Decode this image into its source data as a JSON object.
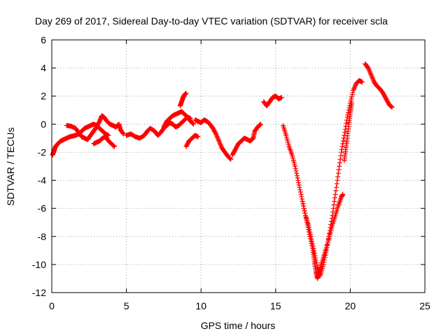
{
  "chart_data": {
    "type": "scatter",
    "title": "Day 269 of 2017, Sidereal Day-to-day VTEC variation (SDTVAR) for receiver scla",
    "xlabel": "GPS time / hours",
    "ylabel": "SDTVAR / TECUs",
    "xlim": [
      0,
      25
    ],
    "ylim": [
      -12,
      6
    ],
    "xticks": [
      0,
      5,
      10,
      15,
      20,
      25
    ],
    "yticks": [
      -12,
      -10,
      -8,
      -6,
      -4,
      -2,
      0,
      2,
      4,
      6
    ],
    "xtick_labels": [
      "0",
      "5",
      "10",
      "15",
      "20",
      "25"
    ],
    "ytick_labels": [
      "-12",
      "-10",
      "-8",
      "-6",
      "-4",
      "-2",
      "0",
      "2",
      "4",
      "6"
    ],
    "grid": true,
    "marker": "plus",
    "color": "#ff0000",
    "series": [
      {
        "points": [
          [
            0.05,
            -2.2
          ],
          [
            0.15,
            -1.9
          ],
          [
            0.25,
            -1.6
          ],
          [
            0.4,
            -1.4
          ],
          [
            0.6,
            -1.2
          ],
          [
            0.8,
            -1.1
          ],
          [
            1.0,
            -1.0
          ],
          [
            1.2,
            -0.9
          ],
          [
            1.4,
            -0.85
          ],
          [
            1.6,
            -0.8
          ],
          [
            1.8,
            -0.7
          ],
          [
            2.0,
            -0.5
          ],
          [
            2.2,
            -0.3
          ],
          [
            2.4,
            -0.2
          ],
          [
            2.6,
            -0.1
          ],
          [
            2.8,
            0.0
          ],
          [
            3.0,
            -0.1
          ],
          [
            3.2,
            -0.3
          ],
          [
            3.4,
            -0.5
          ],
          [
            3.6,
            -0.7
          ],
          [
            3.8,
            -0.8
          ]
        ]
      },
      {
        "points": [
          [
            1.0,
            -0.1
          ],
          [
            1.3,
            -0.15
          ],
          [
            1.6,
            -0.3
          ],
          [
            1.8,
            -0.6
          ],
          [
            2.0,
            -0.9
          ],
          [
            2.2,
            -1.0
          ],
          [
            2.4,
            -1.1
          ],
          [
            2.6,
            -0.8
          ],
          [
            2.8,
            -0.5
          ],
          [
            3.0,
            -0.2
          ],
          [
            3.2,
            0.2
          ],
          [
            3.35,
            0.6
          ],
          [
            3.5,
            0.5
          ],
          [
            3.7,
            0.2
          ],
          [
            3.9,
            0.0
          ],
          [
            4.1,
            -0.1
          ],
          [
            4.3,
            -0.2
          ],
          [
            4.5,
            0.0
          ],
          [
            4.6,
            -0.4
          ],
          [
            4.8,
            -0.7
          ]
        ]
      },
      {
        "points": [
          [
            2.8,
            -1.4
          ],
          [
            3.0,
            -1.3
          ],
          [
            3.2,
            -1.2
          ],
          [
            3.4,
            -1.0
          ],
          [
            3.6,
            -0.9
          ],
          [
            3.8,
            -1.2
          ],
          [
            4.0,
            -1.4
          ],
          [
            4.2,
            -1.6
          ]
        ]
      },
      {
        "points": [
          [
            5.0,
            -0.8
          ],
          [
            5.3,
            -0.7
          ],
          [
            5.6,
            -0.9
          ],
          [
            5.9,
            -1.0
          ],
          [
            6.2,
            -0.8
          ],
          [
            6.4,
            -0.5
          ],
          [
            6.6,
            -0.3
          ],
          [
            6.9,
            -0.5
          ],
          [
            7.1,
            -0.8
          ],
          [
            7.3,
            -0.6
          ],
          [
            7.5,
            -0.3
          ],
          [
            7.7,
            -0.1
          ],
          [
            7.9,
            0.1
          ],
          [
            8.1,
            0.0
          ],
          [
            8.3,
            -0.2
          ],
          [
            8.5,
            -0.1
          ],
          [
            8.7,
            0.1
          ],
          [
            8.9,
            0.3
          ],
          [
            9.1,
            0.5
          ],
          [
            9.3,
            0.2
          ],
          [
            9.5,
            0.0
          ]
        ]
      },
      {
        "points": [
          [
            7.5,
            -0.2
          ],
          [
            7.7,
            0.2
          ],
          [
            7.9,
            0.4
          ],
          [
            8.1,
            0.6
          ],
          [
            8.3,
            0.7
          ],
          [
            8.5,
            0.8
          ],
          [
            8.7,
            0.9
          ],
          [
            8.9,
            0.7
          ],
          [
            9.1,
            0.5
          ],
          [
            9.3,
            0.4
          ]
        ]
      },
      {
        "points": [
          [
            8.6,
            1.3
          ],
          [
            8.7,
            1.6
          ],
          [
            8.8,
            1.9
          ],
          [
            8.9,
            2.1
          ],
          [
            9.0,
            2.2
          ]
        ]
      },
      {
        "points": [
          [
            9.0,
            -1.6
          ],
          [
            9.2,
            -1.2
          ],
          [
            9.4,
            -1.0
          ],
          [
            9.6,
            -0.8
          ],
          [
            9.8,
            -0.9
          ]
        ]
      },
      {
        "points": [
          [
            9.6,
            0.3
          ],
          [
            9.8,
            0.2
          ],
          [
            10.0,
            0.1
          ],
          [
            10.2,
            0.3
          ],
          [
            10.4,
            0.2
          ],
          [
            10.6,
            0.0
          ],
          [
            10.8,
            -0.3
          ],
          [
            11.0,
            -0.7
          ],
          [
            11.2,
            -1.2
          ],
          [
            11.4,
            -1.7
          ],
          [
            11.6,
            -2.0
          ],
          [
            11.8,
            -2.3
          ],
          [
            12.0,
            -2.5
          ]
        ]
      },
      {
        "points": [
          [
            12.1,
            -2.2
          ],
          [
            12.3,
            -1.8
          ],
          [
            12.5,
            -1.4
          ],
          [
            12.7,
            -1.2
          ],
          [
            12.9,
            -1.0
          ],
          [
            13.1,
            -1.1
          ],
          [
            13.3,
            -1.2
          ],
          [
            13.5,
            -1.0
          ],
          [
            13.6,
            -0.5
          ],
          [
            13.8,
            -0.2
          ],
          [
            14.0,
            0.0
          ]
        ]
      },
      {
        "points": [
          [
            14.2,
            1.6
          ],
          [
            14.4,
            1.3
          ],
          [
            14.6,
            1.6
          ],
          [
            14.8,
            1.9
          ],
          [
            15.0,
            2.0
          ],
          [
            15.2,
            1.8
          ],
          [
            15.4,
            1.9
          ]
        ]
      },
      {
        "points": [
          [
            15.5,
            -0.1
          ],
          [
            15.7,
            -0.8
          ],
          [
            15.9,
            -1.6
          ],
          [
            16.1,
            -2.2
          ],
          [
            16.3,
            -3.0
          ],
          [
            16.5,
            -4.0
          ],
          [
            16.7,
            -5.0
          ],
          [
            16.9,
            -6.0
          ],
          [
            17.1,
            -7.0
          ],
          [
            17.3,
            -8.0
          ],
          [
            17.5,
            -9.0
          ],
          [
            17.6,
            -9.8
          ],
          [
            17.7,
            -10.5
          ],
          [
            17.8,
            -11.0
          ],
          [
            17.9,
            -10.6
          ],
          [
            18.0,
            -10.2
          ],
          [
            18.2,
            -9.5
          ],
          [
            18.4,
            -8.8
          ],
          [
            18.6,
            -8.0
          ],
          [
            18.8,
            -7.2
          ],
          [
            19.0,
            -6.5
          ],
          [
            19.2,
            -5.8
          ],
          [
            19.4,
            -5.2
          ],
          [
            19.5,
            -5.0
          ]
        ]
      },
      {
        "points": [
          [
            16.8,
            -5.5
          ],
          [
            17.0,
            -6.5
          ],
          [
            17.2,
            -7.2
          ],
          [
            17.4,
            -8.2
          ],
          [
            17.6,
            -9.2
          ],
          [
            17.8,
            -10.2
          ],
          [
            18.0,
            -10.8
          ],
          [
            18.2,
            -10.0
          ],
          [
            18.4,
            -9.0
          ],
          [
            18.6,
            -7.8
          ],
          [
            18.8,
            -6.5
          ],
          [
            19.0,
            -5.0
          ],
          [
            19.2,
            -3.5
          ],
          [
            19.4,
            -2.0
          ],
          [
            19.6,
            -0.8
          ],
          [
            19.8,
            0.5
          ],
          [
            20.0,
            1.5
          ],
          [
            20.2,
            2.4
          ],
          [
            20.4,
            2.9
          ],
          [
            20.6,
            3.1
          ],
          [
            20.8,
            3.0
          ]
        ]
      },
      {
        "points": [
          [
            19.6,
            -2.6
          ],
          [
            19.7,
            -1.8
          ],
          [
            19.8,
            -1.0
          ],
          [
            19.9,
            0.0
          ],
          [
            20.0,
            0.8
          ],
          [
            20.1,
            1.5
          ]
        ]
      },
      {
        "points": [
          [
            21.0,
            4.3
          ],
          [
            21.2,
            4.0
          ],
          [
            21.4,
            3.5
          ],
          [
            21.6,
            3.0
          ],
          [
            21.8,
            2.7
          ],
          [
            22.0,
            2.5
          ],
          [
            22.2,
            2.2
          ],
          [
            22.4,
            1.8
          ],
          [
            22.6,
            1.4
          ],
          [
            22.8,
            1.2
          ]
        ]
      }
    ]
  }
}
